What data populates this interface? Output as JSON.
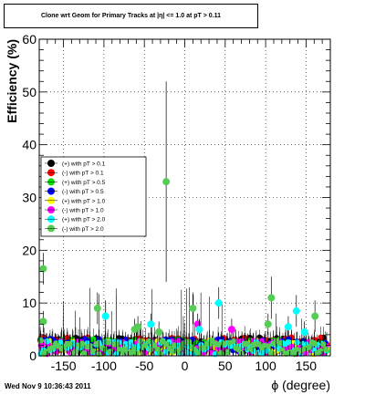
{
  "chart_data": {
    "type": "scatter",
    "title": "Clone wrt Geom for Primary Tracks at |η| <= 1.0 at pT > 0.11",
    "xlabel": "ϕ (degree)",
    "ylabel": "Efficiency (%)",
    "xlim": [
      -180,
      180
    ],
    "ylim": [
      0,
      60
    ],
    "x_ticks": [
      -150,
      -100,
      -50,
      0,
      50,
      100,
      150
    ],
    "y_ticks": [
      0,
      10,
      20,
      30,
      40,
      50,
      60
    ],
    "grid": true,
    "legend_position": "center-left",
    "series": [
      {
        "name": "(+) with pT > 0.1",
        "color": "#000000"
      },
      {
        "name": "(-) with pT > 0.1",
        "color": "#ff0000"
      },
      {
        "name": "(+) with pT > 0.5",
        "color": "#00dd00"
      },
      {
        "name": "(-) with pT > 0.5",
        "color": "#0000ff"
      },
      {
        "name": "(+) with pT > 1.0",
        "color": "#ffff00"
      },
      {
        "name": "(-) with pT > 1.0",
        "color": "#ff00ff"
      },
      {
        "name": "(+) with pT > 2.0",
        "color": "#00ffff"
      },
      {
        "name": "(-) with pT > 2.0",
        "color": "#55cc55"
      }
    ],
    "notable_points": [
      {
        "series": 7,
        "x": -175,
        "y": 16.5,
        "err": 3
      },
      {
        "series": 7,
        "x": -175,
        "y": 6.5,
        "err": 2
      },
      {
        "series": 7,
        "x": -23,
        "y": 33,
        "err": 19
      },
      {
        "series": 7,
        "x": -108,
        "y": 9,
        "err": 3
      },
      {
        "series": 6,
        "x": -98,
        "y": 7.5,
        "err": 3
      },
      {
        "series": 7,
        "x": 10,
        "y": 9,
        "err": 3
      },
      {
        "series": 6,
        "x": 42,
        "y": 10,
        "err": 3
      },
      {
        "series": 7,
        "x": 107,
        "y": 11,
        "err": 4
      },
      {
        "series": 6,
        "x": 138,
        "y": 8.5,
        "err": 3
      },
      {
        "series": 7,
        "x": 161,
        "y": 7.5,
        "err": 3
      },
      {
        "series": 6,
        "x": 128,
        "y": 5.5,
        "err": 2
      },
      {
        "series": 7,
        "x": 103,
        "y": 6,
        "err": 2
      },
      {
        "series": 7,
        "x": -62,
        "y": 5,
        "err": 2
      },
      {
        "series": 7,
        "x": -58,
        "y": 5.5,
        "err": 2
      },
      {
        "series": 6,
        "x": -42,
        "y": 6,
        "err": 2
      },
      {
        "series": 7,
        "x": -32,
        "y": 4.5,
        "err": 2
      },
      {
        "series": 5,
        "x": 16,
        "y": 6,
        "err": 2
      },
      {
        "series": 6,
        "x": 18,
        "y": 5,
        "err": 2
      },
      {
        "series": 5,
        "x": 58,
        "y": 5,
        "err": 2
      },
      {
        "series": 6,
        "x": 148,
        "y": 4.5,
        "err": 2
      }
    ]
  },
  "footer": {
    "timestamp": "Wed Nov  9 10:36:43 2011"
  }
}
